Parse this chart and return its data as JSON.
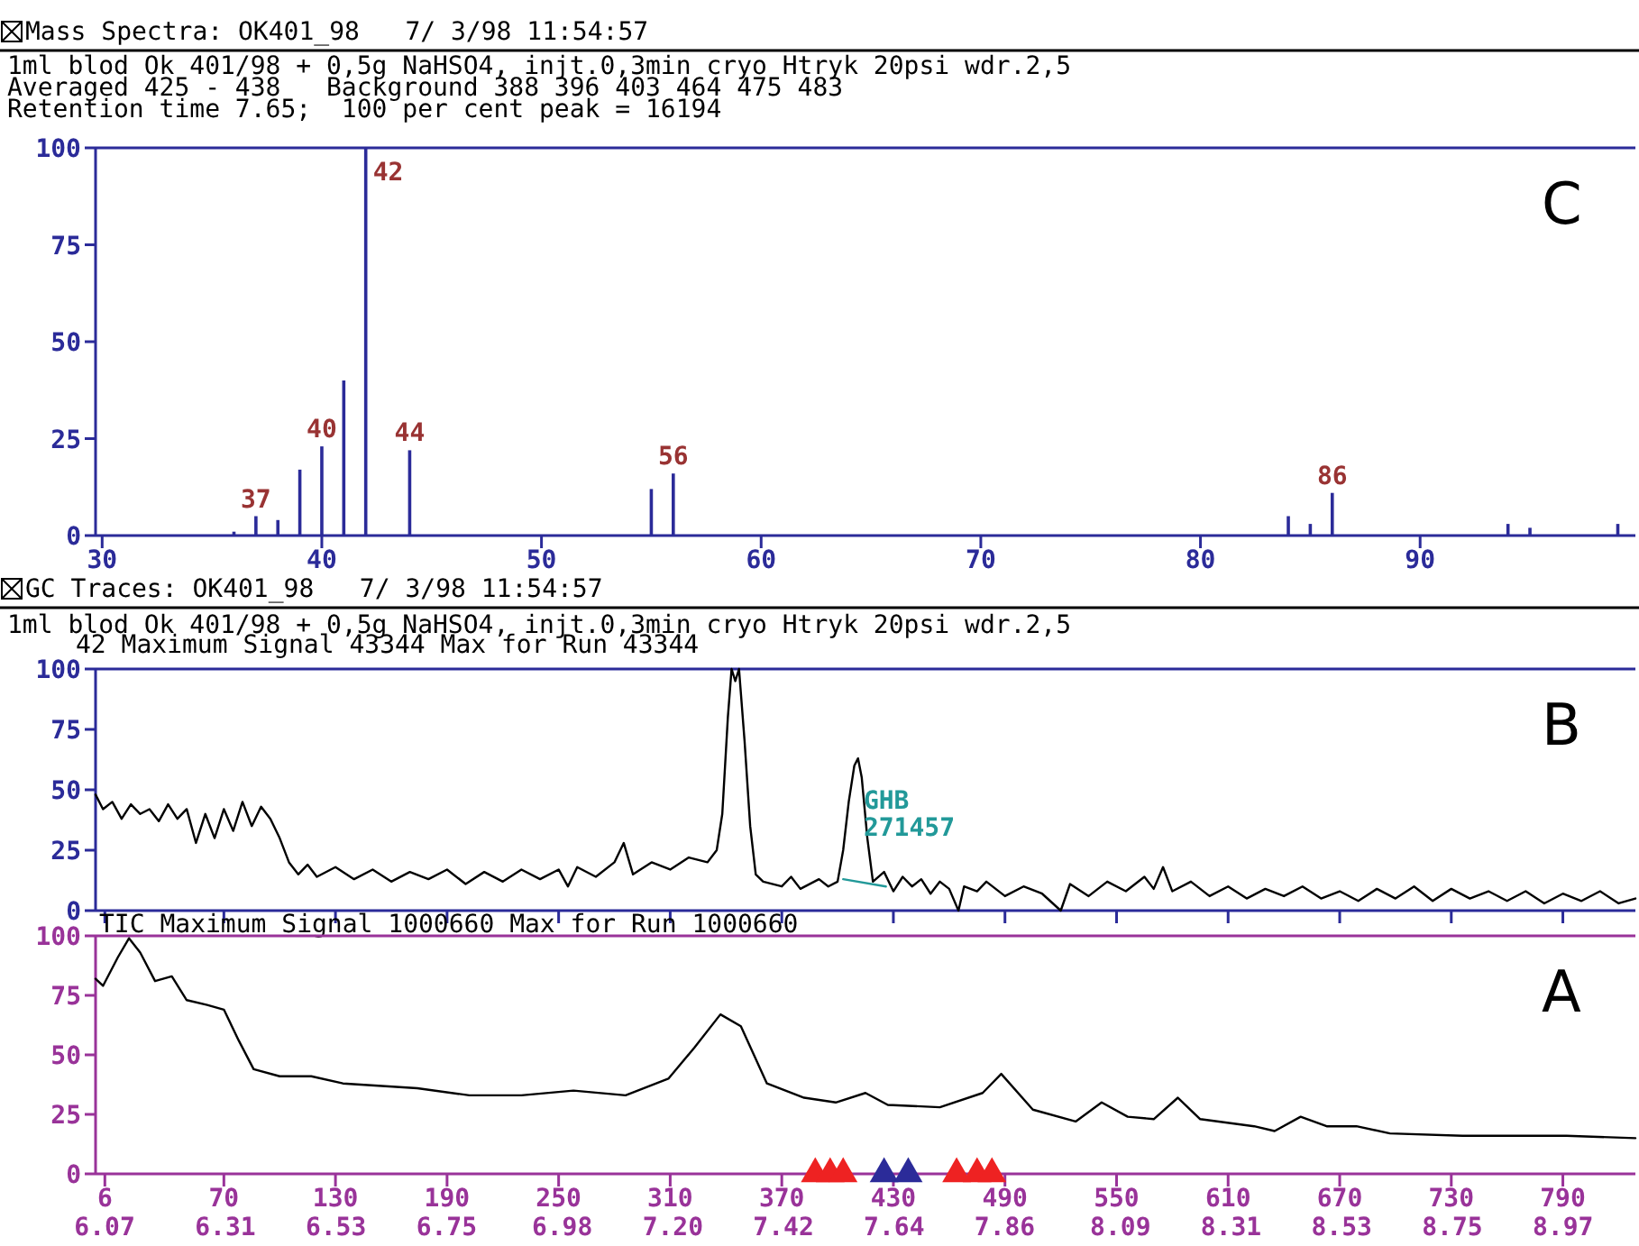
{
  "chart_data": [
    {
      "type": "bar",
      "title": "Mass Spectra: OK401_98   7/ 3/98 11:54:57",
      "subtitle": "1ml blod Ok 401/98 + 0,5g NaHSO4, injt.0,3min cryo Htryk 20psi wdr.2,5",
      "annotations": [
        "Averaged 425 - 438   Background 388 396 403 464 475 483",
        "Retention time 7.65;  100 per cent peak = 16194",
        "C",
        {
          "text": "37",
          "x": 37,
          "y": 5
        },
        {
          "text": "40",
          "x": 40,
          "y": 23
        },
        {
          "text": "42",
          "x": 42,
          "y": 100
        },
        {
          "text": "44",
          "x": 44,
          "y": 22
        },
        {
          "text": "56",
          "x": 56,
          "y": 16
        },
        {
          "text": "86",
          "x": 86,
          "y": 11
        }
      ],
      "x": [
        36,
        37,
        38,
        39,
        40,
        41,
        42,
        44,
        55,
        56,
        84,
        85,
        86,
        94,
        95,
        99
      ],
      "values": [
        1,
        5,
        4,
        17,
        23,
        40,
        100,
        22,
        12,
        16,
        5,
        3,
        11,
        3,
        2,
        3
      ],
      "color": "#2b2b99",
      "xlim": [
        29.7,
        99.8
      ],
      "xticks": [
        30,
        40,
        50,
        60,
        70,
        80,
        90
      ],
      "ylim": [
        0,
        100
      ],
      "yticks": [
        0,
        25,
        50,
        75,
        100
      ]
    },
    {
      "type": "line",
      "title": "GC Traces: OK401_98   7/ 3/98 11:54:57",
      "subtitle": "1ml blod Ok 401/98 + 0,5g NaHSO4, injt.0,3min cryo Htryk 20psi wdr.2,5",
      "annotations": [
        "42 Maximum Signal 43344 Max for Run 43344",
        "B",
        {
          "text": "GHB\n271457",
          "x": 414,
          "y": 42
        }
      ],
      "xlim": [
        1,
        829
      ],
      "xticks": [
        6,
        70,
        130,
        190,
        250,
        310,
        370,
        430,
        490,
        550,
        610,
        670,
        730,
        790
      ],
      "ylim": [
        0,
        100
      ],
      "yticks": [
        0,
        25,
        50,
        75,
        100
      ],
      "tick_labels": "y",
      "series": [
        {
          "color": "#000000",
          "x": [
            1,
            5,
            10,
            15,
            20,
            25,
            30,
            35,
            40,
            45,
            50,
            55,
            60,
            65,
            70,
            75,
            80,
            85,
            90,
            95,
            100,
            105,
            110,
            115,
            120,
            130,
            140,
            150,
            160,
            170,
            180,
            190,
            200,
            210,
            220,
            230,
            240,
            250,
            255,
            260,
            270,
            280,
            285,
            290,
            300,
            310,
            320,
            330,
            335,
            338,
            341,
            343,
            345,
            347,
            350,
            353,
            356,
            360,
            370,
            375,
            380,
            390,
            395,
            400,
            403,
            406,
            409,
            411,
            413,
            416,
            419,
            425,
            430,
            435,
            440,
            445,
            450,
            455,
            460,
            465,
            468,
            475,
            480,
            490,
            500,
            510,
            520,
            525,
            535,
            545,
            555,
            565,
            570,
            575,
            580,
            590,
            600,
            610,
            620,
            630,
            640,
            650,
            660,
            670,
            680,
            690,
            700,
            710,
            720,
            730,
            740,
            750,
            760,
            770,
            780,
            790,
            800,
            810,
            820,
            829
          ],
          "values": [
            48,
            42,
            45,
            38,
            44,
            40,
            42,
            37,
            44,
            38,
            42,
            28,
            40,
            30,
            42,
            33,
            45,
            35,
            43,
            38,
            30,
            20,
            15,
            19,
            14,
            18,
            13,
            17,
            12,
            16,
            13,
            17,
            11,
            16,
            12,
            17,
            13,
            17,
            10,
            18,
            14,
            20,
            28,
            15,
            20,
            17,
            22,
            20,
            25,
            40,
            80,
            100,
            95,
            100,
            70,
            35,
            15,
            12,
            10,
            14,
            9,
            13,
            10,
            12,
            25,
            45,
            60,
            63,
            55,
            30,
            12,
            16,
            8,
            14,
            10,
            13,
            7,
            12,
            9,
            0,
            10,
            8,
            12,
            6,
            10,
            7,
            0,
            11,
            6,
            12,
            8,
            14,
            9,
            18,
            8,
            12,
            6,
            10,
            5,
            9,
            6,
            10,
            5,
            8,
            4,
            9,
            5,
            10,
            4,
            9,
            5,
            8,
            4,
            8,
            3,
            7,
            4,
            8,
            3,
            5
          ]
        },
        {
          "type": "line",
          "color": "#229999",
          "x": [
            403,
            426
          ],
          "values": [
            13,
            10
          ]
        }
      ]
    },
    {
      "type": "line",
      "title": "TIC Maximum Signal 1000660 Max for Run 1000660",
      "annotations": [
        "A"
      ],
      "xlim": [
        1,
        829
      ],
      "ylim": [
        0,
        100
      ],
      "yticks": [
        0,
        25,
        50,
        75,
        100
      ],
      "xticks": [
        6,
        70,
        130,
        190,
        250,
        310,
        370,
        430,
        490,
        550,
        610,
        670,
        730,
        790
      ],
      "x2lim": [
        6.052,
        9.114
      ],
      "x2ticks": [
        6.07,
        6.31,
        6.53,
        6.75,
        6.98,
        {
          "value": 7.2,
          "label": "7.20"
        },
        7.42,
        7.64,
        7.86,
        8.09,
        8.31,
        8.53,
        8.75,
        8.97
      ],
      "series": [
        {
          "color": "#000000",
          "x": [
            1,
            5,
            13,
            19,
            25,
            33,
            42,
            50,
            61,
            70,
            78,
            86,
            100,
            117,
            134,
            174,
            202,
            230,
            258,
            286,
            309,
            323,
            337,
            348,
            362,
            382,
            399,
            415,
            427,
            455,
            478,
            488,
            505,
            528,
            542,
            556,
            570,
            583,
            595,
            624,
            635,
            649,
            663,
            679,
            697,
            736,
            792,
            829
          ],
          "values": [
            82,
            79,
            91,
            99,
            93,
            81,
            83,
            73,
            71,
            69,
            56,
            44,
            41,
            41,
            38,
            36,
            33,
            33,
            35,
            33,
            40,
            53,
            67,
            62,
            38,
            32,
            30,
            34,
            29,
            28,
            34,
            42,
            27,
            22,
            30,
            24,
            23,
            32,
            23,
            20,
            18,
            24,
            20,
            20,
            17,
            16,
            16,
            15
          ]
        },
        {
          "type": "scatter",
          "marker": "triangle",
          "color": "#ee2222",
          "x": [
            388,
            396,
            403,
            464,
            475,
            483
          ],
          "values": [
            0,
            0,
            0,
            0,
            0,
            0
          ]
        },
        {
          "type": "scatter",
          "marker": "triangle",
          "color": "#2b2b99",
          "x": [
            425,
            438
          ],
          "values": [
            0,
            0
          ]
        }
      ]
    }
  ]
}
